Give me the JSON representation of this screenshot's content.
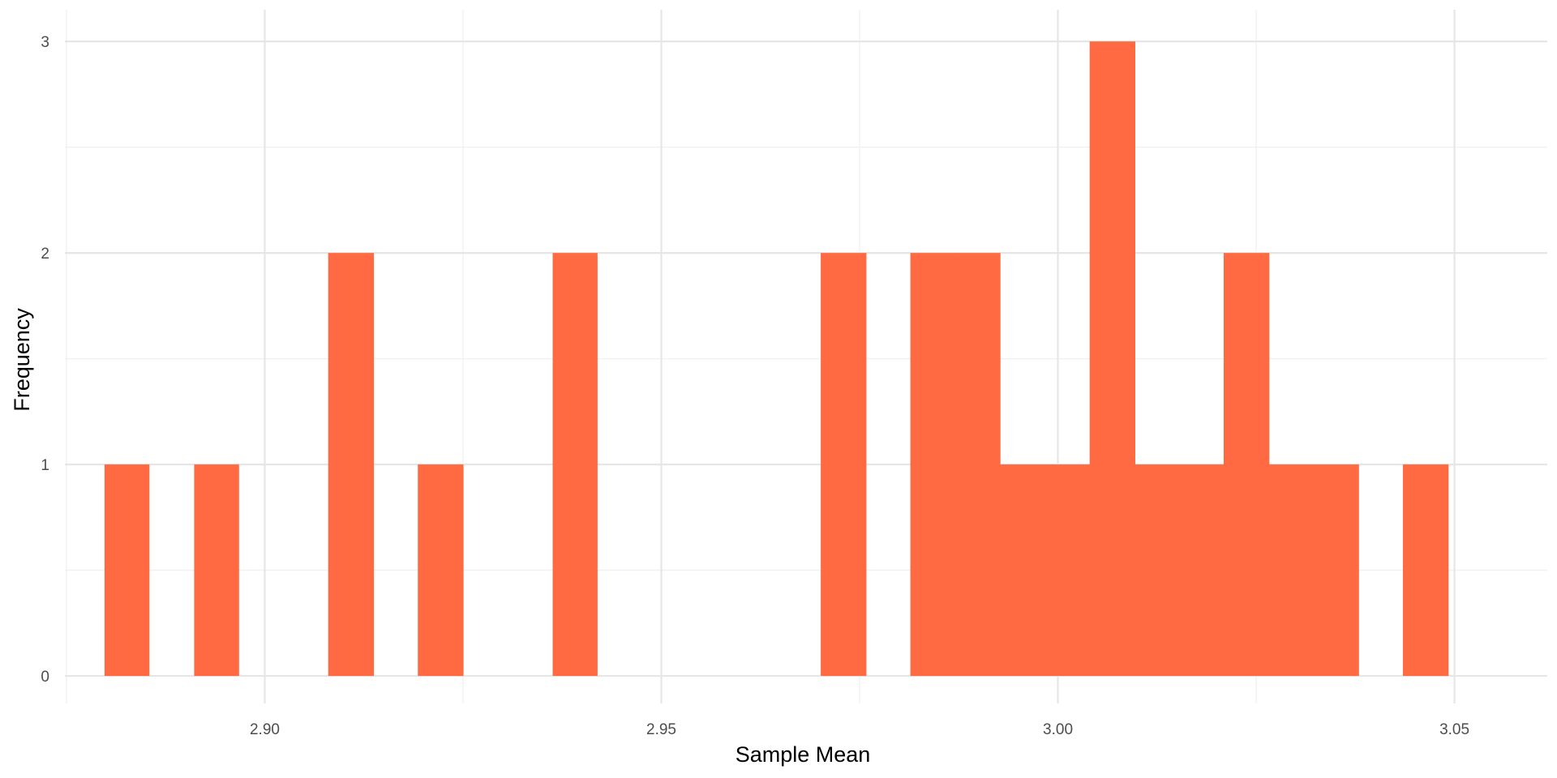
{
  "chart_data": {
    "type": "bar",
    "subtype": "histogram",
    "xlabel": "Sample Mean",
    "ylabel": "Frequency",
    "xlim": [
      2.8748,
      3.0617
    ],
    "ylim": [
      -0.13,
      3.15
    ],
    "x_ticks": [
      {
        "value": 2.9,
        "label": "2.90"
      },
      {
        "value": 2.95,
        "label": "2.95"
      },
      {
        "value": 3.0,
        "label": "3.00"
      },
      {
        "value": 3.05,
        "label": "3.05"
      }
    ],
    "x_minor_ticks": [
      2.875,
      2.925,
      2.975,
      3.025
    ],
    "y_ticks": [
      {
        "value": 0,
        "label": "0"
      },
      {
        "value": 1,
        "label": "1"
      },
      {
        "value": 2,
        "label": "2"
      },
      {
        "value": 3,
        "label": "3"
      }
    ],
    "y_minor_ticks": [
      0.5,
      1.5,
      2.5
    ],
    "grid": true,
    "legend": "none",
    "bin_width": 0.005644,
    "bins": [
      {
        "start": 2.8798,
        "end": 2.8854,
        "count": 1
      },
      {
        "start": 2.8911,
        "end": 2.8967,
        "count": 1
      },
      {
        "start": 2.908,
        "end": 2.9137,
        "count": 2
      },
      {
        "start": 2.9193,
        "end": 2.925,
        "count": 1
      },
      {
        "start": 2.9363,
        "end": 2.9419,
        "count": 2
      },
      {
        "start": 2.9701,
        "end": 2.9758,
        "count": 2
      },
      {
        "start": 2.9814,
        "end": 2.9871,
        "count": 2
      },
      {
        "start": 2.9871,
        "end": 2.9927,
        "count": 2
      },
      {
        "start": 2.9927,
        "end": 2.9984,
        "count": 1
      },
      {
        "start": 2.9984,
        "end": 3.004,
        "count": 1
      },
      {
        "start": 3.004,
        "end": 3.0097,
        "count": 3
      },
      {
        "start": 3.0097,
        "end": 3.0153,
        "count": 1
      },
      {
        "start": 3.0153,
        "end": 3.0209,
        "count": 1
      },
      {
        "start": 3.0209,
        "end": 3.0266,
        "count": 2
      },
      {
        "start": 3.0266,
        "end": 3.0322,
        "count": 1
      },
      {
        "start": 3.0322,
        "end": 3.0379,
        "count": 1
      },
      {
        "start": 3.0435,
        "end": 3.0492,
        "count": 1
      }
    ],
    "colors": {
      "bar": "#FF6A42",
      "grid_major": "#e6e6e6",
      "grid_minor": "#f0f0f0"
    }
  }
}
